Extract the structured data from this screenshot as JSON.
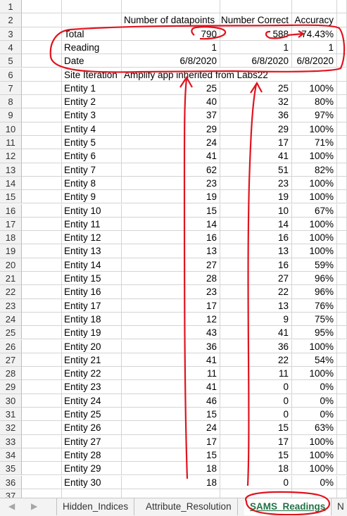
{
  "header_row": {
    "col_c": "Number of datapoints",
    "col_d": "Number Correct",
    "col_e": "Accuracy"
  },
  "summary": [
    {
      "label": "Total",
      "c": "790",
      "d": "588",
      "e": "74.43%"
    },
    {
      "label": "Reading",
      "c": "1",
      "d": "1",
      "e": "1"
    },
    {
      "label": "Date",
      "c": "6/8/2020",
      "d": "6/8/2020",
      "e": "6/8/2020"
    }
  ],
  "site_iteration": {
    "label": "Site Iteration",
    "value": "Amplify app inherited from Labs22"
  },
  "entities": [
    {
      "name": "Entity 1",
      "c": "25",
      "d": "25",
      "e": "100%"
    },
    {
      "name": "Entity 2",
      "c": "40",
      "d": "32",
      "e": "80%"
    },
    {
      "name": "Entity 3",
      "c": "37",
      "d": "36",
      "e": "97%"
    },
    {
      "name": "Entity 4",
      "c": "29",
      "d": "29",
      "e": "100%"
    },
    {
      "name": "Entity 5",
      "c": "24",
      "d": "17",
      "e": "71%"
    },
    {
      "name": "Entity 6",
      "c": "41",
      "d": "41",
      "e": "100%"
    },
    {
      "name": "Entity 7",
      "c": "62",
      "d": "51",
      "e": "82%"
    },
    {
      "name": "Entity 8",
      "c": "23",
      "d": "23",
      "e": "100%"
    },
    {
      "name": "Entity 9",
      "c": "19",
      "d": "19",
      "e": "100%"
    },
    {
      "name": "Entity 10",
      "c": "15",
      "d": "10",
      "e": "67%"
    },
    {
      "name": "Entity 11",
      "c": "14",
      "d": "14",
      "e": "100%"
    },
    {
      "name": "Entity 12",
      "c": "16",
      "d": "16",
      "e": "100%"
    },
    {
      "name": "Entity 13",
      "c": "13",
      "d": "13",
      "e": "100%"
    },
    {
      "name": "Entity 14",
      "c": "27",
      "d": "16",
      "e": "59%"
    },
    {
      "name": "Entity 15",
      "c": "28",
      "d": "27",
      "e": "96%"
    },
    {
      "name": "Entity 16",
      "c": "23",
      "d": "22",
      "e": "96%"
    },
    {
      "name": "Entity 17",
      "c": "17",
      "d": "13",
      "e": "76%"
    },
    {
      "name": "Entity 18",
      "c": "12",
      "d": "9",
      "e": "75%"
    },
    {
      "name": "Entity 19",
      "c": "43",
      "d": "41",
      "e": "95%"
    },
    {
      "name": "Entity 20",
      "c": "36",
      "d": "36",
      "e": "100%"
    },
    {
      "name": "Entity 21",
      "c": "41",
      "d": "22",
      "e": "54%"
    },
    {
      "name": "Entity 22",
      "c": "11",
      "d": "11",
      "e": "100%"
    },
    {
      "name": "Entity 23",
      "c": "41",
      "d": "0",
      "e": "0%"
    },
    {
      "name": "Entity 24",
      "c": "46",
      "d": "0",
      "e": "0%"
    },
    {
      "name": "Entity 25",
      "c": "15",
      "d": "0",
      "e": "0%"
    },
    {
      "name": "Entity 26",
      "c": "24",
      "d": "15",
      "e": "63%"
    },
    {
      "name": "Entity 27",
      "c": "17",
      "d": "17",
      "e": "100%"
    },
    {
      "name": "Entity 28",
      "c": "15",
      "d": "15",
      "e": "100%"
    },
    {
      "name": "Entity 29",
      "c": "18",
      "d": "18",
      "e": "100%"
    },
    {
      "name": "Entity 30",
      "c": "18",
      "d": "0",
      "e": "0%"
    }
  ],
  "row_numbers": [
    "1",
    "2",
    "3",
    "4",
    "5",
    "6",
    "7",
    "8",
    "9",
    "10",
    "11",
    "12",
    "13",
    "14",
    "15",
    "16",
    "17",
    "18",
    "19",
    "20",
    "21",
    "22",
    "23",
    "24",
    "25",
    "26",
    "27",
    "28",
    "29",
    "30",
    "31",
    "32",
    "33",
    "34",
    "35",
    "36",
    "37"
  ],
  "tabs": {
    "nav_prev": "◀",
    "nav_next": "▶",
    "items": [
      "Hidden_Indices",
      "Attribute_Resolution",
      "SAMS_Readings",
      "N"
    ],
    "active": "SAMS_Readings"
  },
  "colors": {
    "annotation": "#e0141e",
    "active_tab": "#217346",
    "gridline": "#d4d4d4"
  }
}
